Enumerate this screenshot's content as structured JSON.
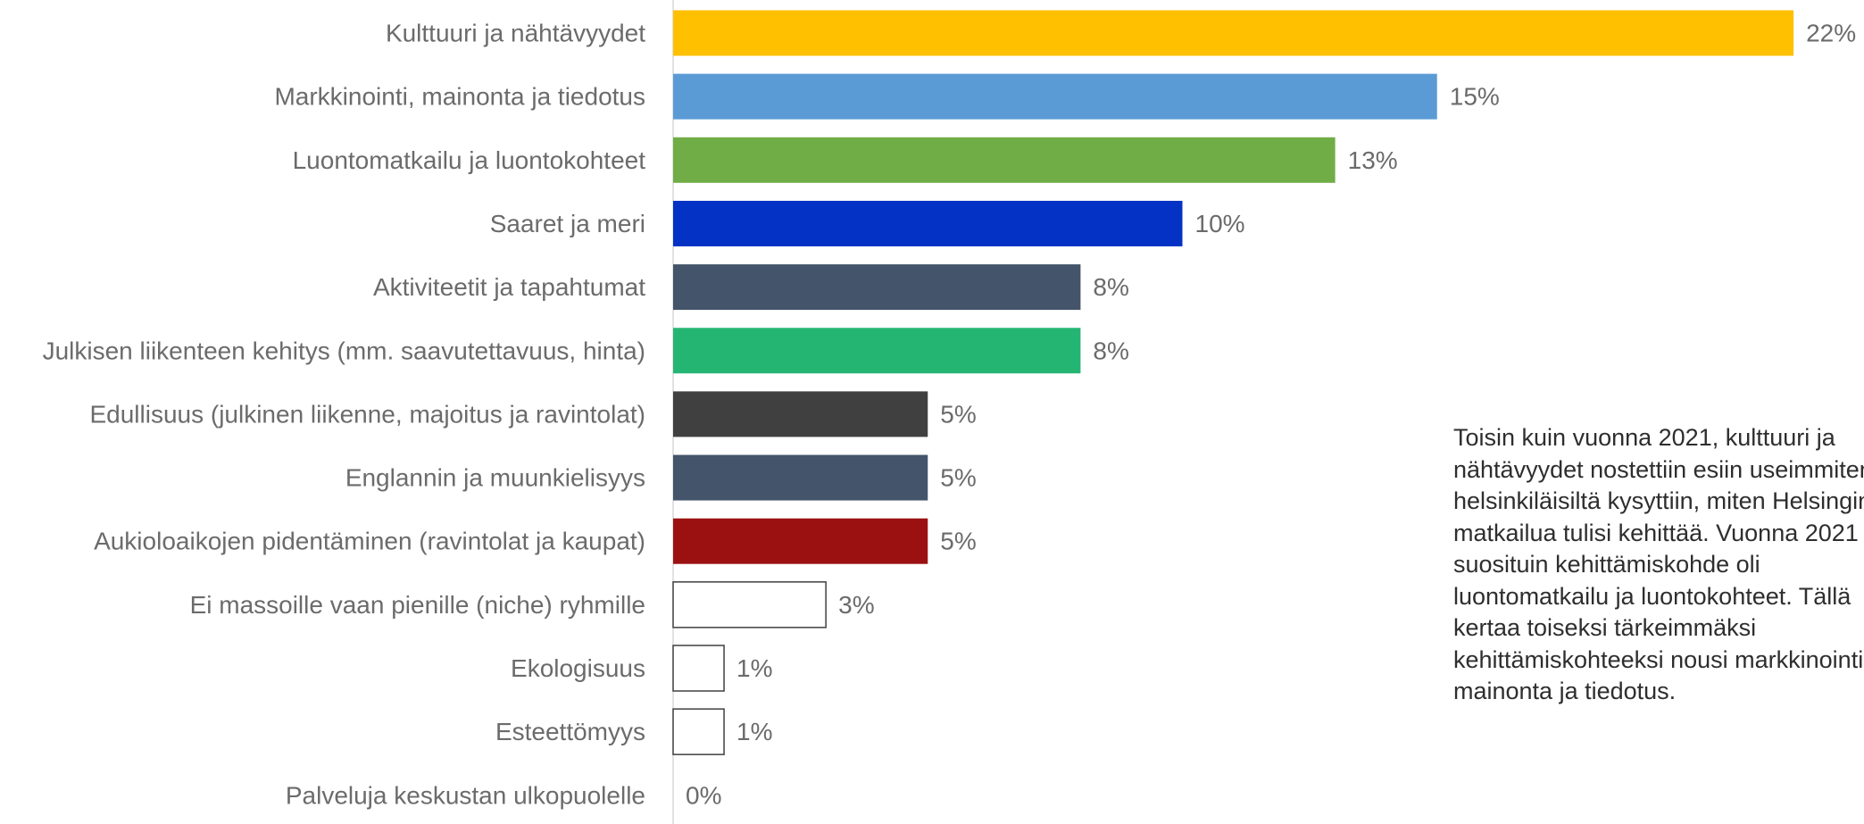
{
  "chart_data": {
    "type": "bar",
    "orientation": "horizontal",
    "categories": [
      "Kulttuuri ja nähtävyydet",
      "Markkinointi, mainonta ja tiedotus",
      "Luontomatkailu ja luontokohteet",
      "Saaret ja meri",
      "Aktiviteetit ja tapahtumat",
      "Julkisen liikenteen kehitys (mm. saavutettavuus, hinta)",
      "Edullisuus (julkinen liikenne, majoitus ja ravintolat)",
      "Englannin ja muunkielisyys",
      "Aukioloaikojen pidentäminen (ravintolat ja kaupat)",
      "Ei massoille vaan pienille (niche) ryhmille",
      "Ekologisuus",
      "Esteettömyys",
      "Palveluja keskustan ulkopuolelle"
    ],
    "values": [
      22,
      15,
      13,
      10,
      8,
      8,
      5,
      5,
      5,
      3,
      1,
      1,
      0
    ],
    "value_labels": [
      "22%",
      "15%",
      "13%",
      "10%",
      "8%",
      "8%",
      "5%",
      "5%",
      "5%",
      "3%",
      "1%",
      "1%",
      "0%"
    ],
    "colors": [
      "#FFC000",
      "#5B9BD5",
      "#70AD47",
      "#0432C4",
      "#44546A",
      "#25B573",
      "#404040",
      "#44546A",
      "#9B1111",
      "#FFFFFF",
      "#FFFFFF",
      "#FFFFFF",
      "#FFFFFF"
    ],
    "outlined": [
      false,
      false,
      false,
      false,
      false,
      false,
      false,
      false,
      false,
      true,
      true,
      true,
      true
    ],
    "axis_color": "#D9D9D9",
    "xlim": [
      0,
      22
    ]
  },
  "annotation": {
    "lines": [
      "Toisin kuin vuonna 2021, kulttuuri ja",
      "nähtävyydet nostettiin esiin useimmiten, kun",
      "helsinkiläisiltä kysyttiin, miten Helsingin",
      "matkailua tulisi kehittää. Vuonna 2021",
      "suosituin kehittämiskohde oli",
      "luontomatkailu ja luontokohteet. Tällä",
      "kertaa toiseksi tärkeimmäksi",
      "kehittämiskohteeksi nousi markkinointi,",
      "mainonta ja tiedotus."
    ]
  }
}
